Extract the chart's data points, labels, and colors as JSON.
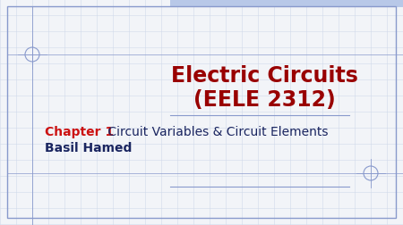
{
  "background_color": "#f2f4f8",
  "grid_color": "#d0daea",
  "border_color": "#8899cc",
  "title_line1": "Electric Circuits",
  "title_line2": "(EELE 2312)",
  "title_color": "#990000",
  "title_fontsize": 17,
  "chapter_label": "Chapter 1",
  "chapter_label_color": "#cc1111",
  "chapter_rest": " Circuit Variables & Circuit Elements",
  "chapter_rest_color": "#1a2560",
  "chapter_fontsize": 10,
  "author": "Basil Hamed",
  "author_color": "#1a2560",
  "author_fontsize": 10,
  "separator_color": "#8899cc",
  "top_bar_color": "#b8c8e8",
  "crosshair_color": "#8899cc"
}
